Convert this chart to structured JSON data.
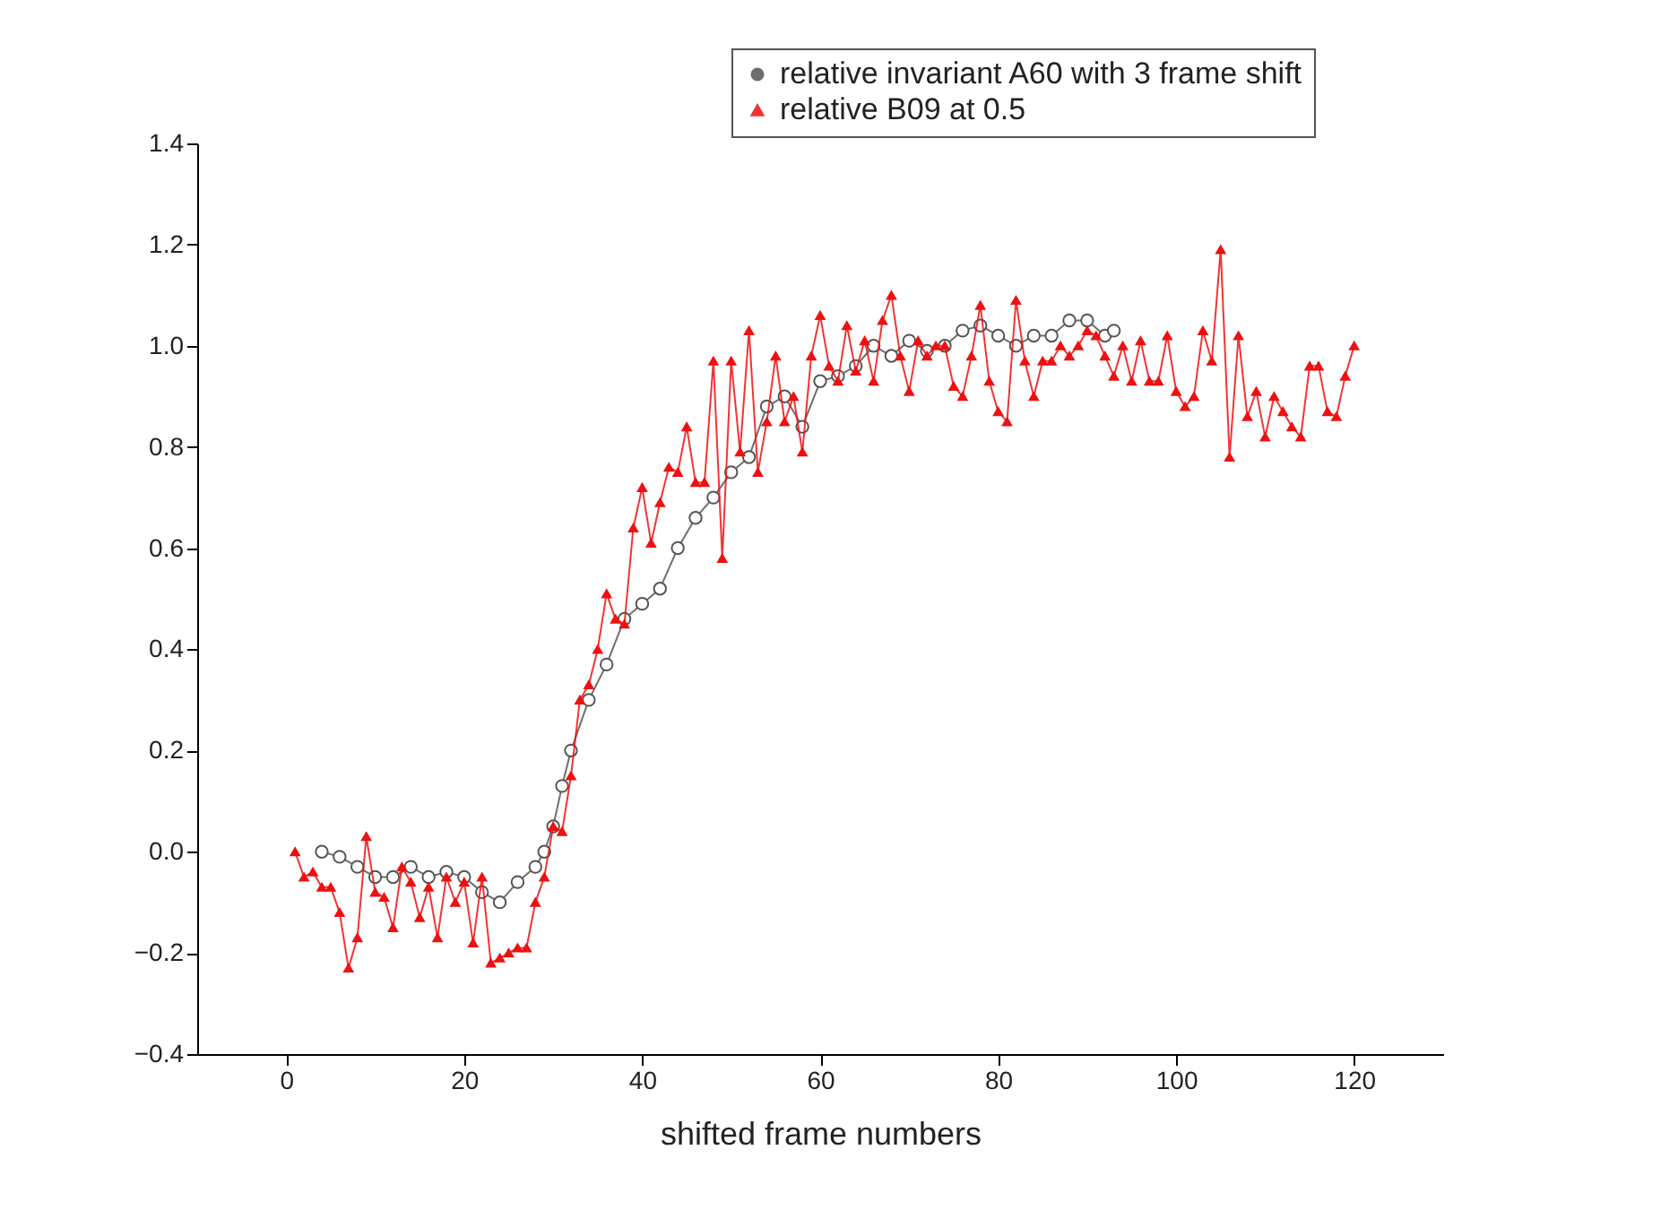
{
  "chart_data": {
    "type": "line",
    "xlabel": "shifted frame numbers",
    "xlim": [
      -10,
      130
    ],
    "xticks": [
      0,
      20,
      40,
      60,
      80,
      100,
      120
    ],
    "ylim": [
      -0.4,
      1.4
    ],
    "yticks": [
      -0.4,
      -0.2,
      {
        "value": 0,
        "label": "0.0"
      },
      0.2,
      0.4,
      0.6,
      0.8,
      {
        "value": 1,
        "label": "1.0"
      },
      1.2,
      1.4
    ],
    "grid": false,
    "legend": "top right",
    "line_style": "solid",
    "series": [
      {
        "name": "relative invariant A60 with 3 frame shift",
        "color": "#555555",
        "marker": "circle",
        "x": [
          4,
          6,
          8,
          10,
          12,
          14,
          16,
          18,
          20,
          22,
          24,
          26,
          28,
          29,
          30,
          31,
          32,
          34,
          36,
          38,
          40,
          42,
          44,
          46,
          48,
          50,
          52,
          54,
          56,
          58,
          60,
          62,
          64,
          66,
          68,
          70,
          72,
          74,
          76,
          78,
          80,
          82,
          84,
          86,
          88,
          90,
          92,
          93
        ],
        "values": [
          0.0,
          -0.01,
          -0.03,
          -0.05,
          -0.05,
          -0.03,
          -0.05,
          -0.04,
          -0.05,
          -0.08,
          -0.1,
          -0.06,
          -0.03,
          0.0,
          0.05,
          0.13,
          0.2,
          0.3,
          0.37,
          0.46,
          0.49,
          0.52,
          0.6,
          0.66,
          0.7,
          0.75,
          0.78,
          0.88,
          0.9,
          0.84,
          0.93,
          0.94,
          0.96,
          1.0,
          0.98,
          1.01,
          0.99,
          1.0,
          1.03,
          1.04,
          1.02,
          1.0,
          1.02,
          1.02,
          1.05,
          1.05,
          1.02,
          1.03
        ]
      },
      {
        "name": "relative B09 at 0.5",
        "color": "#ee1111",
        "marker": "triangle",
        "x": [
          1,
          2,
          3,
          4,
          5,
          6,
          7,
          8,
          9,
          10,
          11,
          12,
          13,
          14,
          15,
          16,
          17,
          18,
          19,
          20,
          21,
          22,
          23,
          24,
          25,
          26,
          27,
          28,
          29,
          30,
          31,
          32,
          33,
          34,
          35,
          36,
          37,
          38,
          39,
          40,
          41,
          42,
          43,
          44,
          45,
          46,
          47,
          48,
          49,
          50,
          51,
          52,
          53,
          54,
          55,
          56,
          57,
          58,
          59,
          60,
          61,
          62,
          63,
          64,
          65,
          66,
          67,
          68,
          69,
          70,
          71,
          72,
          73,
          74,
          75,
          76,
          77,
          78,
          79,
          80,
          81,
          82,
          83,
          84,
          85,
          86,
          87,
          88,
          89,
          90,
          91,
          92,
          93,
          94,
          95,
          96,
          97,
          98,
          99,
          100,
          101,
          102,
          103,
          104,
          105,
          106,
          107,
          108,
          109,
          110,
          111,
          112,
          113,
          114,
          115,
          116,
          117,
          118,
          119,
          120
        ],
        "values": [
          0.0,
          -0.05,
          -0.04,
          -0.07,
          -0.07,
          -0.12,
          -0.23,
          -0.17,
          0.03,
          -0.08,
          -0.09,
          -0.15,
          -0.03,
          -0.06,
          -0.13,
          -0.07,
          -0.17,
          -0.05,
          -0.1,
          -0.06,
          -0.18,
          -0.05,
          -0.22,
          -0.21,
          -0.2,
          -0.19,
          -0.19,
          -0.1,
          -0.05,
          0.05,
          0.04,
          0.15,
          0.3,
          0.33,
          0.4,
          0.51,
          0.46,
          0.45,
          0.64,
          0.72,
          0.61,
          0.69,
          0.76,
          0.75,
          0.84,
          0.73,
          0.73,
          0.97,
          0.58,
          0.97,
          0.79,
          1.03,
          0.75,
          0.85,
          0.98,
          0.85,
          0.9,
          0.79,
          0.98,
          1.06,
          0.96,
          0.93,
          1.04,
          0.95,
          1.01,
          0.93,
          1.05,
          1.1,
          0.98,
          0.91,
          1.01,
          0.98,
          1.0,
          1.0,
          0.92,
          0.9,
          0.98,
          1.08,
          0.93,
          0.87,
          0.85,
          1.09,
          0.97,
          0.9,
          0.97,
          0.97,
          1.0,
          0.98,
          1.0,
          1.03,
          1.02,
          0.98,
          0.94,
          1.0,
          0.93,
          1.01,
          0.93,
          0.93,
          1.02,
          0.91,
          0.88,
          0.9,
          1.03,
          0.97,
          1.19,
          0.78,
          1.02,
          0.86,
          0.91,
          0.82,
          0.9,
          0.87,
          0.84,
          0.82,
          0.96,
          0.96,
          0.87,
          0.86,
          0.94,
          1.0
        ]
      }
    ]
  }
}
